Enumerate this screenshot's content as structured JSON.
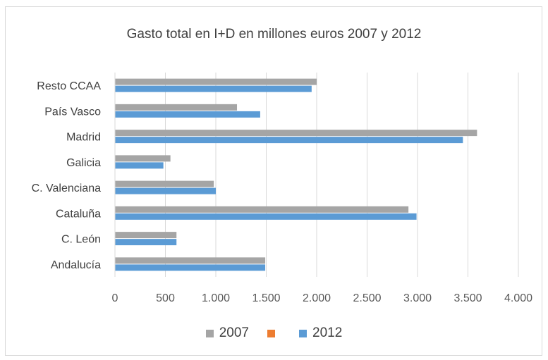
{
  "chart_data": {
    "type": "bar",
    "orientation": "horizontal",
    "title": "Gasto total en I+D en millones euros 2007 y 2012",
    "categories": [
      "Resto CCAA",
      "País Vasco",
      "Madrid",
      "Galicia",
      "C. Valenciana",
      "Cataluña",
      "C. León",
      "Andalucía"
    ],
    "series": [
      {
        "name": "2007",
        "color": "#a5a5a5",
        "values": [
          2000,
          1210,
          3590,
          550,
          980,
          2910,
          610,
          1490
        ]
      },
      {
        "name": "",
        "color": "#ed7d31",
        "values": [
          0,
          0,
          0,
          0,
          0,
          0,
          0,
          0
        ]
      },
      {
        "name": "2012",
        "color": "#5b9bd5",
        "values": [
          1950,
          1440,
          3450,
          480,
          1000,
          2990,
          610,
          1490
        ]
      }
    ],
    "xlim": [
      0,
      4000
    ],
    "xticks": [
      "0",
      "500",
      "1.000",
      "1.500",
      "2.000",
      "2.500",
      "3.000",
      "3.500",
      "4.000"
    ],
    "grid": true,
    "legend_position": "bottom"
  }
}
